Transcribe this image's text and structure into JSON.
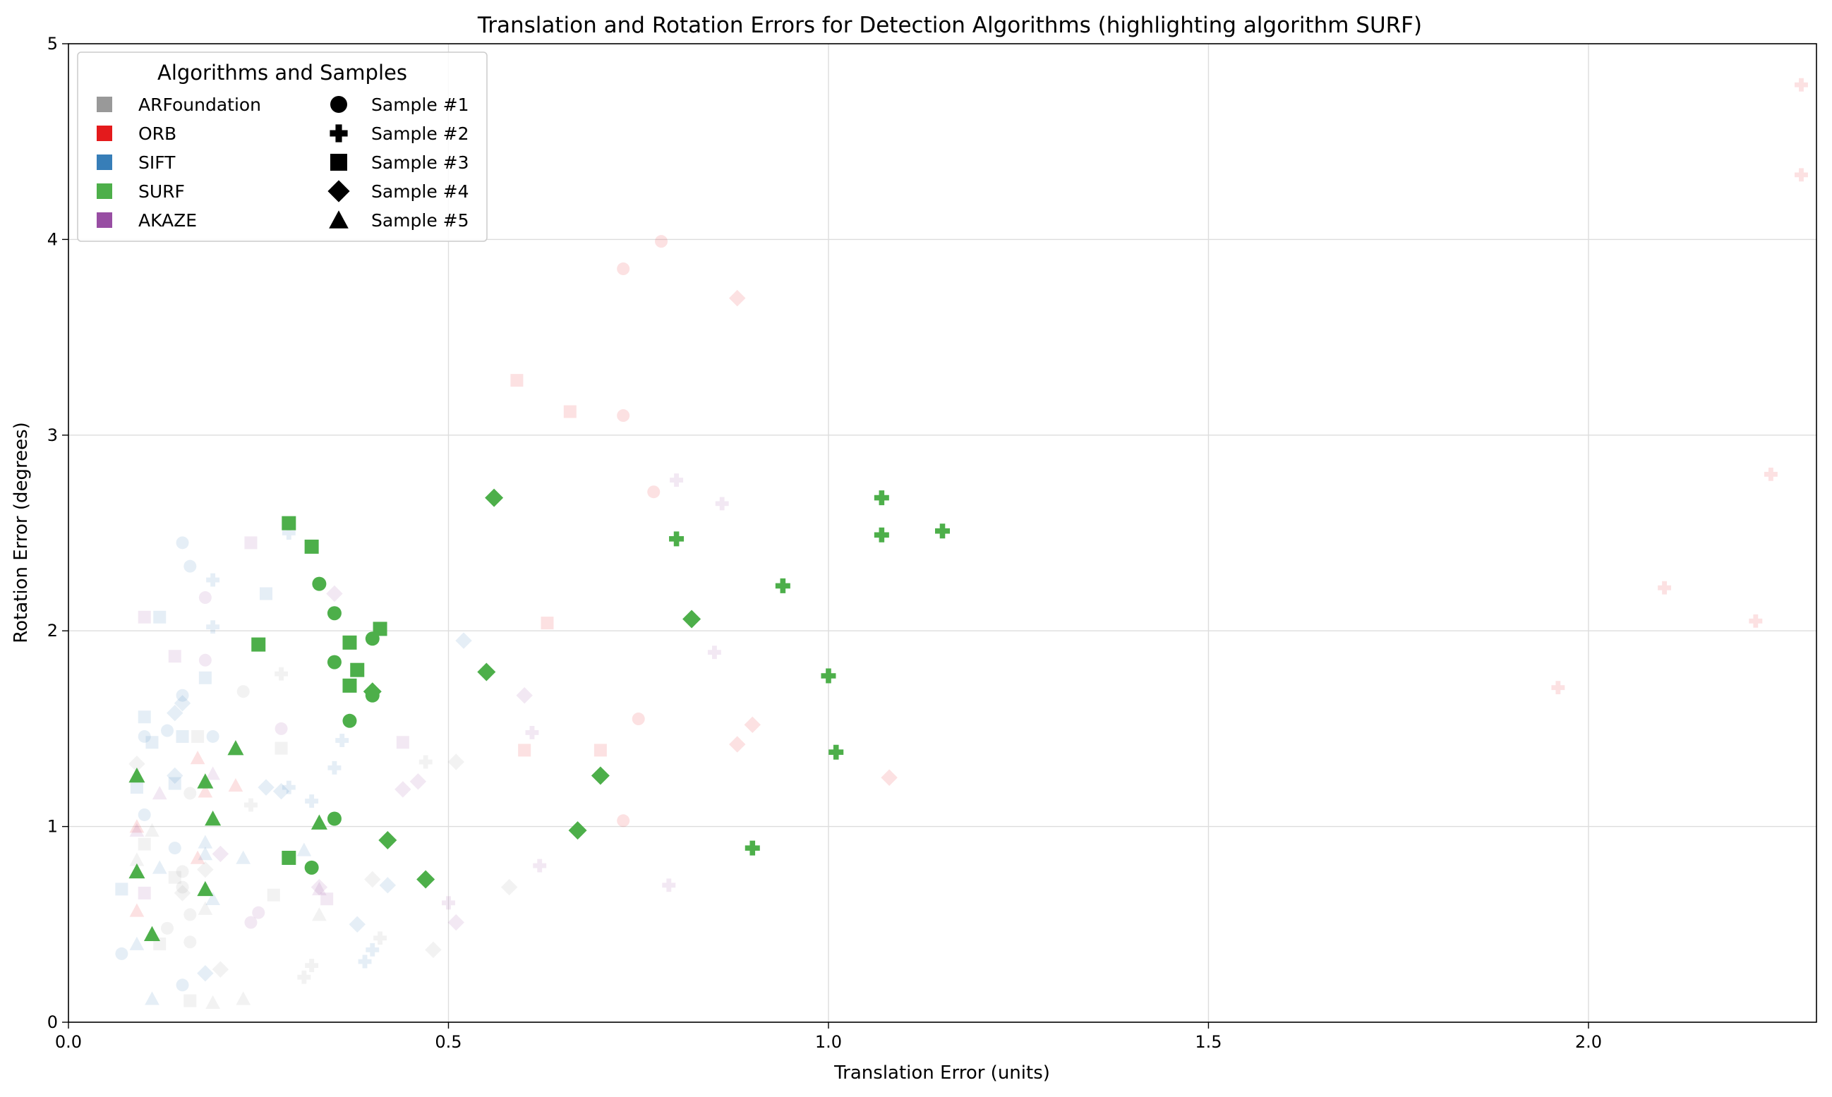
{
  "chart_data": {
    "type": "scatter",
    "title": "Translation and Rotation Errors for Detection Algorithms (highlighting algorithm SURF)",
    "xlabel": "Translation Error (units)",
    "ylabel": "Rotation Error (degrees)",
    "xlim": [
      0.0,
      2.3
    ],
    "ylim": [
      0,
      5
    ],
    "xticks": [
      "0.0",
      "0.5",
      "1.0",
      "1.5",
      "2.0"
    ],
    "yticks": [
      "0",
      "1",
      "2",
      "3",
      "4",
      "5"
    ],
    "grid": true,
    "highlighted": "SURF",
    "legend": {
      "title": "Algorithms and Samples",
      "placement": "top-left",
      "algorithms": [
        {
          "name": "ARFoundation",
          "color": "#999999"
        },
        {
          "name": "ORB",
          "color": "#e41a1c"
        },
        {
          "name": "SIFT",
          "color": "#377eb8"
        },
        {
          "name": "SURF",
          "color": "#4daf4a"
        },
        {
          "name": "AKAZE",
          "color": "#984ea3"
        }
      ],
      "samples": [
        {
          "name": "Sample #1",
          "marker": "circle"
        },
        {
          "name": "Sample #2",
          "marker": "plus"
        },
        {
          "name": "Sample #3",
          "marker": "square"
        },
        {
          "name": "Sample #4",
          "marker": "diamond"
        },
        {
          "name": "Sample #5",
          "marker": "triangle"
        }
      ]
    },
    "series": [
      {
        "algorithm": "SURF",
        "sample": 1,
        "points": [
          [
            0.33,
            2.24
          ],
          [
            0.35,
            2.09
          ],
          [
            0.35,
            1.84
          ],
          [
            0.4,
            1.96
          ],
          [
            0.4,
            1.67
          ],
          [
            0.37,
            1.54
          ],
          [
            0.35,
            1.04
          ],
          [
            0.32,
            0.79
          ]
        ]
      },
      {
        "algorithm": "SURF",
        "sample": 2,
        "points": [
          [
            0.8,
            2.47
          ],
          [
            0.94,
            2.23
          ],
          [
            1.07,
            2.68
          ],
          [
            1.07,
            2.49
          ],
          [
            1.15,
            2.51
          ],
          [
            1.0,
            1.77
          ],
          [
            1.01,
            1.38
          ],
          [
            0.9,
            0.89
          ]
        ]
      },
      {
        "algorithm": "SURF",
        "sample": 3,
        "points": [
          [
            0.29,
            2.55
          ],
          [
            0.32,
            2.43
          ],
          [
            0.25,
            1.93
          ],
          [
            0.37,
            1.94
          ],
          [
            0.41,
            2.01
          ],
          [
            0.38,
            1.8
          ],
          [
            0.37,
            1.72
          ],
          [
            0.29,
            0.84
          ]
        ]
      },
      {
        "algorithm": "SURF",
        "sample": 4,
        "points": [
          [
            0.56,
            2.68
          ],
          [
            0.82,
            2.06
          ],
          [
            0.55,
            1.79
          ],
          [
            0.4,
            1.69
          ],
          [
            0.7,
            1.26
          ],
          [
            0.67,
            0.98
          ],
          [
            0.42,
            0.93
          ],
          [
            0.47,
            0.73
          ]
        ]
      },
      {
        "algorithm": "SURF",
        "sample": 5,
        "points": [
          [
            0.22,
            1.4
          ],
          [
            0.09,
            1.26
          ],
          [
            0.18,
            1.23
          ],
          [
            0.19,
            1.04
          ],
          [
            0.33,
            1.02
          ],
          [
            0.09,
            0.77
          ],
          [
            0.18,
            0.68
          ],
          [
            0.11,
            0.45
          ]
        ]
      },
      {
        "algorithm": "ORB",
        "sample": 1,
        "points": [
          [
            0.78,
            3.99
          ],
          [
            0.73,
            3.85
          ],
          [
            0.73,
            3.1
          ],
          [
            0.77,
            2.71
          ],
          [
            0.75,
            1.55
          ],
          [
            0.73,
            1.03
          ]
        ]
      },
      {
        "algorithm": "ORB",
        "sample": 2,
        "points": [
          [
            2.28,
            4.79
          ],
          [
            2.28,
            4.33
          ],
          [
            2.24,
            2.8
          ],
          [
            2.1,
            2.22
          ],
          [
            2.22,
            2.05
          ],
          [
            1.96,
            1.71
          ]
        ]
      },
      {
        "algorithm": "ORB",
        "sample": 3,
        "points": [
          [
            0.59,
            3.28
          ],
          [
            0.66,
            3.12
          ],
          [
            0.63,
            2.04
          ],
          [
            0.7,
            1.39
          ],
          [
            0.6,
            1.39
          ]
        ]
      },
      {
        "algorithm": "ORB",
        "sample": 4,
        "points": [
          [
            0.88,
            3.7
          ],
          [
            0.9,
            1.52
          ],
          [
            0.88,
            1.42
          ],
          [
            1.08,
            1.25
          ]
        ]
      },
      {
        "algorithm": "ORB",
        "sample": 5,
        "points": [
          [
            0.17,
            1.35
          ],
          [
            0.22,
            1.21
          ],
          [
            0.18,
            1.18
          ],
          [
            0.09,
            1.0
          ],
          [
            0.09,
            0.57
          ],
          [
            0.17,
            0.84
          ]
        ]
      },
      {
        "algorithm": "SIFT",
        "sample": 1,
        "points": [
          [
            0.15,
            2.45
          ],
          [
            0.16,
            2.33
          ],
          [
            0.15,
            1.67
          ],
          [
            0.13,
            1.49
          ],
          [
            0.1,
            1.46
          ],
          [
            0.19,
            1.46
          ],
          [
            0.1,
            1.06
          ],
          [
            0.14,
            0.89
          ],
          [
            0.07,
            0.35
          ],
          [
            0.15,
            0.19
          ]
        ]
      },
      {
        "algorithm": "SIFT",
        "sample": 2,
        "points": [
          [
            0.29,
            2.5
          ],
          [
            0.19,
            2.26
          ],
          [
            0.19,
            2.02
          ],
          [
            0.36,
            1.44
          ],
          [
            0.35,
            1.3
          ],
          [
            0.29,
            1.2
          ],
          [
            0.32,
            1.13
          ],
          [
            0.4,
            0.37
          ],
          [
            0.39,
            0.31
          ]
        ]
      },
      {
        "algorithm": "SIFT",
        "sample": 3,
        "points": [
          [
            0.12,
            2.07
          ],
          [
            0.26,
            2.19
          ],
          [
            0.18,
            1.76
          ],
          [
            0.1,
            1.56
          ],
          [
            0.11,
            1.43
          ],
          [
            0.15,
            1.46
          ],
          [
            0.14,
            1.22
          ],
          [
            0.09,
            1.2
          ],
          [
            0.07,
            0.68
          ]
        ]
      },
      {
        "algorithm": "SIFT",
        "sample": 4,
        "points": [
          [
            0.52,
            1.95
          ],
          [
            0.15,
            1.63
          ],
          [
            0.14,
            1.58
          ],
          [
            0.14,
            1.26
          ],
          [
            0.26,
            1.2
          ],
          [
            0.28,
            1.18
          ],
          [
            0.42,
            0.7
          ],
          [
            0.38,
            0.5
          ],
          [
            0.18,
            0.25
          ]
        ]
      },
      {
        "algorithm": "SIFT",
        "sample": 5,
        "points": [
          [
            0.18,
            0.92
          ],
          [
            0.18,
            0.86
          ],
          [
            0.23,
            0.84
          ],
          [
            0.31,
            0.88
          ],
          [
            0.12,
            0.79
          ],
          [
            0.19,
            0.63
          ],
          [
            0.09,
            0.4
          ],
          [
            0.11,
            0.12
          ]
        ]
      },
      {
        "algorithm": "ARFoundation",
        "sample": 1,
        "points": [
          [
            0.23,
            1.69
          ],
          [
            0.16,
            1.17
          ],
          [
            0.15,
            0.77
          ],
          [
            0.15,
            0.69
          ],
          [
            0.16,
            0.55
          ],
          [
            0.13,
            0.48
          ],
          [
            0.16,
            0.41
          ]
        ]
      },
      {
        "algorithm": "ARFoundation",
        "sample": 2,
        "points": [
          [
            0.28,
            1.78
          ],
          [
            0.24,
            1.11
          ],
          [
            0.47,
            1.33
          ],
          [
            0.41,
            0.43
          ],
          [
            0.32,
            0.29
          ],
          [
            0.31,
            0.23
          ]
        ]
      },
      {
        "algorithm": "ARFoundation",
        "sample": 3,
        "points": [
          [
            0.28,
            1.4
          ],
          [
            0.17,
            1.46
          ],
          [
            0.1,
            0.91
          ],
          [
            0.14,
            0.74
          ],
          [
            0.27,
            0.65
          ],
          [
            0.12,
            0.4
          ],
          [
            0.16,
            0.11
          ]
        ]
      },
      {
        "algorithm": "ARFoundation",
        "sample": 4,
        "points": [
          [
            0.09,
            1.32
          ],
          [
            0.51,
            1.33
          ],
          [
            0.18,
            0.78
          ],
          [
            0.4,
            0.73
          ],
          [
            0.15,
            0.66
          ],
          [
            0.58,
            0.69
          ],
          [
            0.48,
            0.37
          ],
          [
            0.2,
            0.27
          ]
        ]
      },
      {
        "algorithm": "ARFoundation",
        "sample": 5,
        "points": [
          [
            0.11,
            0.98
          ],
          [
            0.09,
            0.83
          ],
          [
            0.18,
            0.58
          ],
          [
            0.33,
            0.55
          ],
          [
            0.19,
            0.1
          ],
          [
            0.23,
            0.12
          ]
        ]
      },
      {
        "algorithm": "AKAZE",
        "sample": 1,
        "points": [
          [
            0.18,
            2.17
          ],
          [
            0.18,
            1.85
          ],
          [
            0.28,
            1.5
          ],
          [
            0.25,
            0.56
          ],
          [
            0.24,
            0.51
          ]
        ]
      },
      {
        "algorithm": "AKAZE",
        "sample": 2,
        "points": [
          [
            0.8,
            2.77
          ],
          [
            0.86,
            2.65
          ],
          [
            0.85,
            1.89
          ],
          [
            0.61,
            1.48
          ],
          [
            0.62,
            0.8
          ],
          [
            0.79,
            0.7
          ],
          [
            0.5,
            0.61
          ]
        ]
      },
      {
        "algorithm": "AKAZE",
        "sample": 3,
        "points": [
          [
            0.24,
            2.45
          ],
          [
            0.1,
            2.07
          ],
          [
            0.14,
            1.87
          ],
          [
            0.44,
            1.43
          ],
          [
            0.1,
            0.66
          ],
          [
            0.34,
            0.63
          ]
        ]
      },
      {
        "algorithm": "AKAZE",
        "sample": 4,
        "points": [
          [
            0.35,
            2.19
          ],
          [
            0.6,
            1.67
          ],
          [
            0.46,
            1.23
          ],
          [
            0.44,
            1.19
          ],
          [
            0.2,
            0.86
          ],
          [
            0.33,
            0.69
          ],
          [
            0.51,
            0.51
          ]
        ]
      },
      {
        "algorithm": "AKAZE",
        "sample": 5,
        "points": [
          [
            0.19,
            1.27
          ],
          [
            0.12,
            1.17
          ],
          [
            0.09,
            0.98
          ],
          [
            0.33,
            0.68
          ]
        ]
      }
    ]
  }
}
